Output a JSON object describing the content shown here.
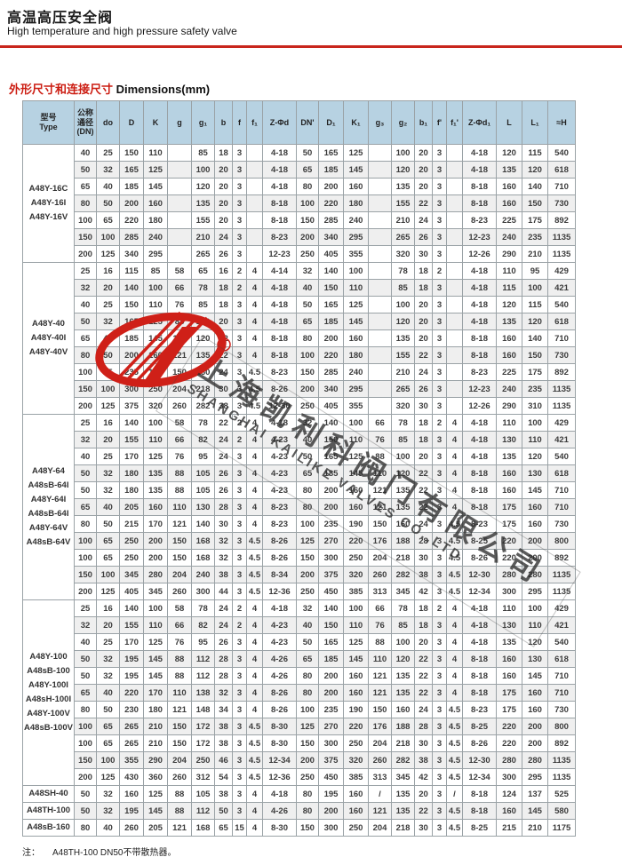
{
  "page": {
    "title_cn": "高温高压安全阀",
    "title_en": "High temperature and high pressure safety valve",
    "section_cn": "外形尺寸和连接尺寸",
    "section_en": " Dimensions(mm)",
    "note_label": "注：",
    "note_text": "A48TH-100  DN50不带散热器。"
  },
  "watermark": {
    "cn": "上海凯利科阀门有限公司",
    "en": "SHANGHAI KAILIKE VALVES CO.,LTD",
    "reg_mark": "R"
  },
  "colors": {
    "accent_red": "#c8251c",
    "logo_red": "#cf2018",
    "header_bg": "#b7d2e2",
    "row_alt_bg": "#efefef",
    "border_gray": "#9aa2a6"
  },
  "table": {
    "headers": [
      "型号\nType",
      "公称\n通径\n(DN)",
      "do",
      "D",
      "K",
      "g",
      "g₁",
      "b",
      "f",
      "f₁",
      "Z-Φd",
      "DN'",
      "D₁",
      "K₁",
      "g₃",
      "g₂",
      "b₁",
      "f'",
      "f₁'",
      "Z-Φd₁",
      "L",
      "L₁",
      "≈H"
    ],
    "groups": [
      {
        "model": [
          "A48Y-16C",
          "A48Y-16I",
          "A48Y-16V"
        ],
        "rows": [
          [
            "40",
            "25",
            "150",
            "110",
            "",
            "85",
            "18",
            "3",
            "",
            "4-18",
            "50",
            "165",
            "125",
            "",
            "100",
            "20",
            "3",
            "",
            "4-18",
            "120",
            "115",
            "540"
          ],
          [
            "50",
            "32",
            "165",
            "125",
            "",
            "100",
            "20",
            "3",
            "",
            "4-18",
            "65",
            "185",
            "145",
            "",
            "120",
            "20",
            "3",
            "",
            "4-18",
            "135",
            "120",
            "618"
          ],
          [
            "65",
            "40",
            "185",
            "145",
            "",
            "120",
            "20",
            "3",
            "",
            "4-18",
            "80",
            "200",
            "160",
            "",
            "135",
            "20",
            "3",
            "",
            "8-18",
            "160",
            "140",
            "710"
          ],
          [
            "80",
            "50",
            "200",
            "160",
            "",
            "135",
            "20",
            "3",
            "",
            "8-18",
            "100",
            "220",
            "180",
            "",
            "155",
            "22",
            "3",
            "",
            "8-18",
            "160",
            "150",
            "730"
          ],
          [
            "100",
            "65",
            "220",
            "180",
            "",
            "155",
            "20",
            "3",
            "",
            "8-18",
            "150",
            "285",
            "240",
            "",
            "210",
            "24",
            "3",
            "",
            "8-23",
            "225",
            "175",
            "892"
          ],
          [
            "150",
            "100",
            "285",
            "240",
            "",
            "210",
            "24",
            "3",
            "",
            "8-23",
            "200",
            "340",
            "295",
            "",
            "265",
            "26",
            "3",
            "",
            "12-23",
            "240",
            "235",
            "1135"
          ],
          [
            "200",
            "125",
            "340",
            "295",
            "",
            "265",
            "26",
            "3",
            "",
            "12-23",
            "250",
            "405",
            "355",
            "",
            "320",
            "30",
            "3",
            "",
            "12-26",
            "290",
            "210",
            "1135"
          ]
        ]
      },
      {
        "model": [
          "A48Y-40",
          "A48Y-40I",
          "A48Y-40V"
        ],
        "rows": [
          [
            "25",
            "16",
            "115",
            "85",
            "58",
            "65",
            "16",
            "2",
            "4",
            "4-14",
            "32",
            "140",
            "100",
            "",
            "78",
            "18",
            "2",
            "",
            "4-18",
            "110",
            "95",
            "429"
          ],
          [
            "32",
            "20",
            "140",
            "100",
            "66",
            "78",
            "18",
            "2",
            "4",
            "4-18",
            "40",
            "150",
            "110",
            "",
            "85",
            "18",
            "3",
            "",
            "4-18",
            "115",
            "100",
            "421"
          ],
          [
            "40",
            "25",
            "150",
            "110",
            "76",
            "85",
            "18",
            "3",
            "4",
            "4-18",
            "50",
            "165",
            "125",
            "",
            "100",
            "20",
            "3",
            "",
            "4-18",
            "120",
            "115",
            "540"
          ],
          [
            "50",
            "32",
            "165",
            "125",
            "88",
            "100",
            "20",
            "3",
            "4",
            "4-18",
            "65",
            "185",
            "145",
            "",
            "120",
            "20",
            "3",
            "",
            "4-18",
            "135",
            "120",
            "618"
          ],
          [
            "65",
            "40",
            "185",
            "145",
            "110",
            "120",
            "22",
            "3",
            "4",
            "8-18",
            "80",
            "200",
            "160",
            "",
            "135",
            "20",
            "3",
            "",
            "8-18",
            "160",
            "140",
            "710"
          ],
          [
            "80",
            "50",
            "200",
            "160",
            "121",
            "135",
            "22",
            "3",
            "4",
            "8-18",
            "100",
            "220",
            "180",
            "",
            "155",
            "22",
            "3",
            "",
            "8-18",
            "160",
            "150",
            "730"
          ],
          [
            "100",
            "65",
            "235",
            "190",
            "150",
            "160",
            "24",
            "3",
            "4.5",
            "8-23",
            "150",
            "285",
            "240",
            "",
            "210",
            "24",
            "3",
            "",
            "8-23",
            "225",
            "175",
            "892"
          ],
          [
            "150",
            "100",
            "300",
            "250",
            "204",
            "218",
            "30",
            "3",
            "4.5",
            "8-26",
            "200",
            "340",
            "295",
            "",
            "265",
            "26",
            "3",
            "",
            "12-23",
            "240",
            "235",
            "1135"
          ],
          [
            "200",
            "125",
            "375",
            "320",
            "260",
            "282",
            "38",
            "3",
            "4.5",
            "12-30",
            "250",
            "405",
            "355",
            "",
            "320",
            "30",
            "3",
            "",
            "12-26",
            "290",
            "310",
            "1135"
          ]
        ]
      },
      {
        "model": [
          "A48Y-64",
          "A48sB-64I",
          "A48Y-64I",
          "A48sB-64I",
          "A48Y-64V",
          "A48sB-64V"
        ],
        "rows": [
          [
            "25",
            "16",
            "140",
            "100",
            "58",
            "78",
            "22",
            "2",
            "4",
            "4-18",
            "32",
            "140",
            "100",
            "66",
            "78",
            "18",
            "2",
            "4",
            "4-18",
            "110",
            "100",
            "429"
          ],
          [
            "32",
            "20",
            "155",
            "110",
            "66",
            "82",
            "24",
            "2",
            "4",
            "4-23",
            "40",
            "150",
            "110",
            "76",
            "85",
            "18",
            "3",
            "4",
            "4-18",
            "130",
            "110",
            "421"
          ],
          [
            "40",
            "25",
            "170",
            "125",
            "76",
            "95",
            "24",
            "3",
            "4",
            "4-23",
            "50",
            "165",
            "125",
            "88",
            "100",
            "20",
            "3",
            "4",
            "4-18",
            "135",
            "120",
            "540"
          ],
          [
            "50",
            "32",
            "180",
            "135",
            "88",
            "105",
            "26",
            "3",
            "4",
            "4-23",
            "65",
            "185",
            "145",
            "110",
            "120",
            "22",
            "3",
            "4",
            "8-18",
            "160",
            "130",
            "618"
          ],
          [
            "50",
            "32",
            "180",
            "135",
            "88",
            "105",
            "26",
            "3",
            "4",
            "4-23",
            "80",
            "200",
            "160",
            "121",
            "135",
            "22",
            "3",
            "4",
            "8-18",
            "160",
            "145",
            "710"
          ],
          [
            "65",
            "40",
            "205",
            "160",
            "110",
            "130",
            "28",
            "3",
            "4",
            "8-23",
            "80",
            "200",
            "160",
            "121",
            "135",
            "22",
            "3",
            "4",
            "8-18",
            "175",
            "160",
            "710"
          ],
          [
            "80",
            "50",
            "215",
            "170",
            "121",
            "140",
            "30",
            "3",
            "4",
            "8-23",
            "100",
            "235",
            "190",
            "150",
            "160",
            "24",
            "3",
            "4.5",
            "8-23",
            "175",
            "160",
            "730"
          ],
          [
            "100",
            "65",
            "250",
            "200",
            "150",
            "168",
            "32",
            "3",
            "4.5",
            "8-26",
            "125",
            "270",
            "220",
            "176",
            "188",
            "28",
            "3",
            "4.5",
            "8-25",
            "220",
            "200",
            "800"
          ],
          [
            "100",
            "65",
            "250",
            "200",
            "150",
            "168",
            "32",
            "3",
            "4.5",
            "8-26",
            "150",
            "300",
            "250",
            "204",
            "218",
            "30",
            "3",
            "4.5",
            "8-26",
            "220",
            "200",
            "892"
          ],
          [
            "150",
            "100",
            "345",
            "280",
            "204",
            "240",
            "38",
            "3",
            "4.5",
            "8-34",
            "200",
            "375",
            "320",
            "260",
            "282",
            "38",
            "3",
            "4.5",
            "12-30",
            "280",
            "280",
            "1135"
          ],
          [
            "200",
            "125",
            "405",
            "345",
            "260",
            "300",
            "44",
            "3",
            "4.5",
            "12-36",
            "250",
            "450",
            "385",
            "313",
            "345",
            "42",
            "3",
            "4.5",
            "12-34",
            "300",
            "295",
            "1135"
          ]
        ]
      },
      {
        "model": [
          "A48Y-100",
          "A48sB-100",
          "A48Y-100I",
          "A48sH-100I",
          "A48Y-100V",
          "A48sB-100V"
        ],
        "rows": [
          [
            "25",
            "16",
            "140",
            "100",
            "58",
            "78",
            "24",
            "2",
            "4",
            "4-18",
            "32",
            "140",
            "100",
            "66",
            "78",
            "18",
            "2",
            "4",
            "4-18",
            "110",
            "100",
            "429"
          ],
          [
            "32",
            "20",
            "155",
            "110",
            "66",
            "82",
            "24",
            "2",
            "4",
            "4-23",
            "40",
            "150",
            "110",
            "76",
            "85",
            "18",
            "3",
            "4",
            "4-18",
            "130",
            "110",
            "421"
          ],
          [
            "40",
            "25",
            "170",
            "125",
            "76",
            "95",
            "26",
            "3",
            "4",
            "4-23",
            "50",
            "165",
            "125",
            "88",
            "100",
            "20",
            "3",
            "4",
            "4-18",
            "135",
            "120",
            "540"
          ],
          [
            "50",
            "32",
            "195",
            "145",
            "88",
            "112",
            "28",
            "3",
            "4",
            "4-26",
            "65",
            "185",
            "145",
            "110",
            "120",
            "22",
            "3",
            "4",
            "8-18",
            "160",
            "130",
            "618"
          ],
          [
            "50",
            "32",
            "195",
            "145",
            "88",
            "112",
            "28",
            "3",
            "4",
            "4-26",
            "80",
            "200",
            "160",
            "121",
            "135",
            "22",
            "3",
            "4",
            "8-18",
            "160",
            "145",
            "710"
          ],
          [
            "65",
            "40",
            "220",
            "170",
            "110",
            "138",
            "32",
            "3",
            "4",
            "8-26",
            "80",
            "200",
            "160",
            "121",
            "135",
            "22",
            "3",
            "4",
            "8-18",
            "175",
            "160",
            "710"
          ],
          [
            "80",
            "50",
            "230",
            "180",
            "121",
            "148",
            "34",
            "3",
            "4",
            "8-26",
            "100",
            "235",
            "190",
            "150",
            "160",
            "24",
            "3",
            "4.5",
            "8-23",
            "175",
            "160",
            "730"
          ],
          [
            "100",
            "65",
            "265",
            "210",
            "150",
            "172",
            "38",
            "3",
            "4.5",
            "8-30",
            "125",
            "270",
            "220",
            "176",
            "188",
            "28",
            "3",
            "4.5",
            "8-25",
            "220",
            "200",
            "800"
          ],
          [
            "100",
            "65",
            "265",
            "210",
            "150",
            "172",
            "38",
            "3",
            "4.5",
            "8-30",
            "150",
            "300",
            "250",
            "204",
            "218",
            "30",
            "3",
            "4.5",
            "8-26",
            "220",
            "200",
            "892"
          ],
          [
            "150",
            "100",
            "355",
            "290",
            "204",
            "250",
            "46",
            "3",
            "4.5",
            "12-34",
            "200",
            "375",
            "320",
            "260",
            "282",
            "38",
            "3",
            "4.5",
            "12-30",
            "280",
            "280",
            "1135"
          ],
          [
            "200",
            "125",
            "430",
            "360",
            "260",
            "312",
            "54",
            "3",
            "4.5",
            "12-36",
            "250",
            "450",
            "385",
            "313",
            "345",
            "42",
            "3",
            "4.5",
            "12-34",
            "300",
            "295",
            "1135"
          ]
        ]
      },
      {
        "model": [
          "A48SH-40"
        ],
        "rows": [
          [
            "50",
            "32",
            "160",
            "125",
            "88",
            "105",
            "38",
            "3",
            "4",
            "4-18",
            "80",
            "195",
            "160",
            "/",
            "135",
            "20",
            "3",
            "/",
            "8-18",
            "124",
            "137",
            "525"
          ]
        ]
      },
      {
        "model": [
          "A48TH-100"
        ],
        "rows": [
          [
            "50",
            "32",
            "195",
            "145",
            "88",
            "112",
            "50",
            "3",
            "4",
            "4-26",
            "80",
            "200",
            "160",
            "121",
            "135",
            "22",
            "3",
            "4.5",
            "8-18",
            "160",
            "145",
            "580"
          ]
        ]
      },
      {
        "model": [
          "A48sB-160"
        ],
        "rows": [
          [
            "80",
            "40",
            "260",
            "205",
            "121",
            "168",
            "65",
            "15",
            "4",
            "8-30",
            "150",
            "300",
            "250",
            "204",
            "218",
            "30",
            "3",
            "4.5",
            "8-25",
            "215",
            "210",
            "1175"
          ]
        ]
      }
    ]
  }
}
